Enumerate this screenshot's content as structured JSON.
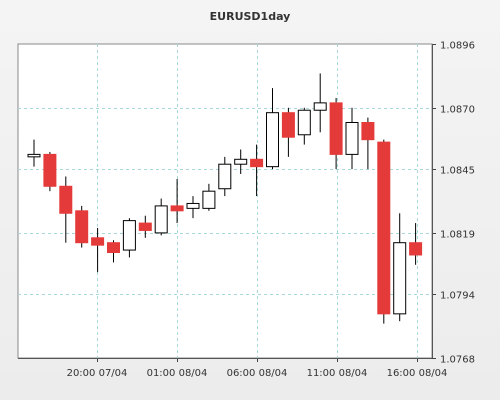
{
  "chart_data": {
    "type": "candlestick",
    "title": "EURUSD1day",
    "x_tick_labels": [
      "20:00 07/04",
      "01:00 08/04",
      "06:00 08/04",
      "11:00 08/04",
      "16:00 08/04"
    ],
    "y_tick_labels": [
      "1.0896",
      "1.0870",
      "1.0845",
      "1.0819",
      "1.0794",
      "1.0768"
    ],
    "y_ticks": [
      1.0896,
      1.087,
      1.0845,
      1.0819,
      1.0794,
      1.0768
    ],
    "ylim": [
      1.0768,
      1.0896
    ],
    "grid": true,
    "colors": {
      "bullish": "#ffffff",
      "bearish": "#e53a3a",
      "outline": "#000000",
      "grid": "#a8d8d8",
      "plot_bg": "#ffffff"
    },
    "candles": [
      {
        "open": 1.085,
        "high": 1.0857,
        "low": 1.0846,
        "close": 1.0851
      },
      {
        "open": 1.0851,
        "high": 1.0852,
        "low": 1.0836,
        "close": 1.0838
      },
      {
        "open": 1.0838,
        "high": 1.0842,
        "low": 1.0815,
        "close": 1.0827
      },
      {
        "open": 1.0828,
        "high": 1.083,
        "low": 1.0813,
        "close": 1.0815
      },
      {
        "open": 1.0817,
        "high": 1.0821,
        "low": 1.0803,
        "close": 1.0814
      },
      {
        "open": 1.0815,
        "high": 1.0816,
        "low": 1.0807,
        "close": 1.0811
      },
      {
        "open": 1.0812,
        "high": 1.0825,
        "low": 1.0809,
        "close": 1.0824
      },
      {
        "open": 1.0823,
        "high": 1.0826,
        "low": 1.0817,
        "close": 1.082
      },
      {
        "open": 1.0819,
        "high": 1.0833,
        "low": 1.0818,
        "close": 1.083
      },
      {
        "open": 1.083,
        "high": 1.0841,
        "low": 1.0823,
        "close": 1.0828
      },
      {
        "open": 1.0829,
        "high": 1.0834,
        "low": 1.0825,
        "close": 1.0831
      },
      {
        "open": 1.0829,
        "high": 1.0839,
        "low": 1.0828,
        "close": 1.0836
      },
      {
        "open": 1.0837,
        "high": 1.085,
        "low": 1.0834,
        "close": 1.0847
      },
      {
        "open": 1.0847,
        "high": 1.0853,
        "low": 1.0843,
        "close": 1.0849
      },
      {
        "open": 1.0849,
        "high": 1.0855,
        "low": 1.0834,
        "close": 1.0846
      },
      {
        "open": 1.0846,
        "high": 1.0878,
        "low": 1.0845,
        "close": 1.0868
      },
      {
        "open": 1.0868,
        "high": 1.087,
        "low": 1.085,
        "close": 1.0858
      },
      {
        "open": 1.0859,
        "high": 1.087,
        "low": 1.0855,
        "close": 1.0869
      },
      {
        "open": 1.0869,
        "high": 1.0884,
        "low": 1.086,
        "close": 1.0872
      },
      {
        "open": 1.0872,
        "high": 1.0874,
        "low": 1.0845,
        "close": 1.0851
      },
      {
        "open": 1.0851,
        "high": 1.087,
        "low": 1.0845,
        "close": 1.0864
      },
      {
        "open": 1.0864,
        "high": 1.0866,
        "low": 1.0845,
        "close": 1.0857
      },
      {
        "open": 1.0856,
        "high": 1.0857,
        "low": 1.0782,
        "close": 1.0786
      },
      {
        "open": 1.0786,
        "high": 1.0827,
        "low": 1.0783,
        "close": 1.0815
      },
      {
        "open": 1.0815,
        "high": 1.0823,
        "low": 1.0806,
        "close": 1.081
      }
    ]
  }
}
